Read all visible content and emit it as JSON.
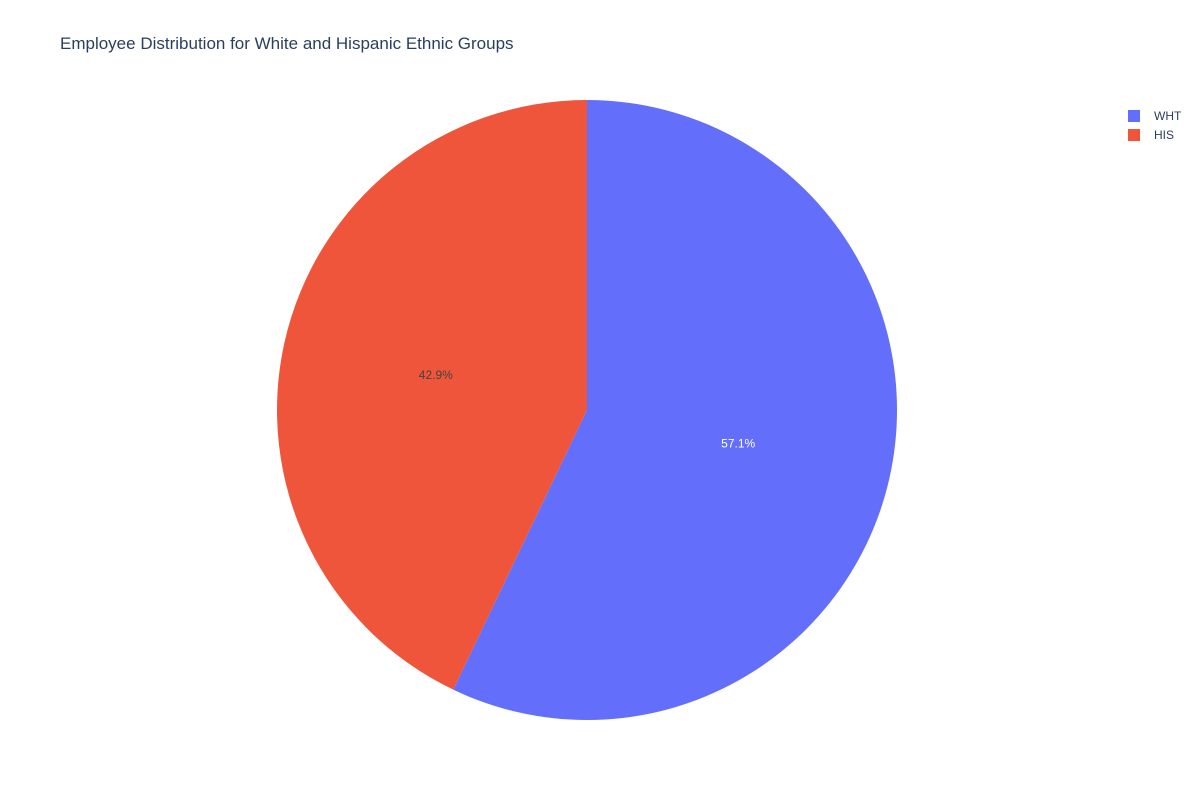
{
  "chart_data": {
    "type": "pie",
    "title": "Employee Distribution for White and Hispanic Ethnic Groups",
    "categories": [
      "WHT",
      "HIS"
    ],
    "values": [
      57.1,
      42.9
    ],
    "labels": [
      "57.1%",
      "42.9%"
    ],
    "colors": [
      "#636efa",
      "#ef553b"
    ],
    "label_colors": [
      "#ffffff",
      "#444444"
    ],
    "direction": "clockwise",
    "start_angle": "top",
    "legend_position": "top-right"
  }
}
